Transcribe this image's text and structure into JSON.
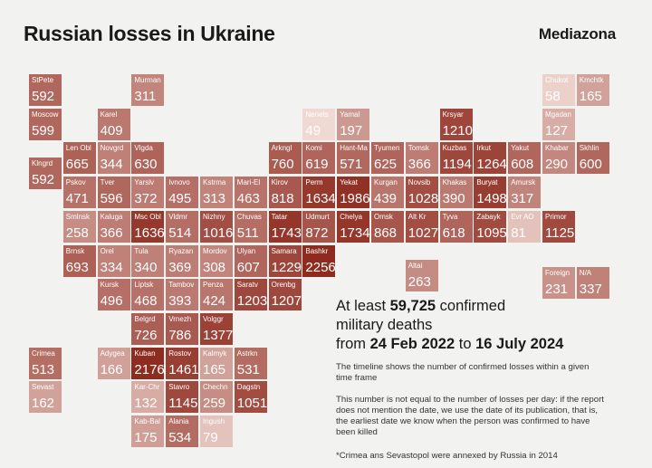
{
  "header": {
    "title": "Russian losses in Ukraine",
    "brand": "Mediazona"
  },
  "headline": {
    "line1_prefix": "At least ",
    "total": "59,725",
    "line1_suffix": " confirmed",
    "line2": "military deaths",
    "line3_prefix": "from ",
    "date_from": "24 Feb 2022",
    "line3_mid": " to ",
    "date_to": "16 July 2024"
  },
  "notes": {
    "timeline": "The timeline shows the number of confirmed losses within a given time frame",
    "caveat": "This number is not equal to the number of losses per day: if the report does not mention the date, we use the date of its publication, that is, the earliest date we know when the person was confirmed to have been killed",
    "footnote": "*Crimea ans Sevastopol were annexed by Russia in 2014"
  },
  "legend_color_scale": {
    "min_color": "#f0d9d3",
    "max_color": "#8e2a1e",
    "min_value": 49,
    "max_value": 2256
  },
  "regions": [
    {
      "name": "StPete",
      "value": 592,
      "col": 0,
      "row": 0
    },
    {
      "name": "Moscow",
      "value": 599,
      "col": 0,
      "row": 1
    },
    {
      "name": "Klngrd",
      "value": 592,
      "col": 0,
      "row": 2.45
    },
    {
      "name": "Murman",
      "value": 311,
      "col": 3,
      "row": 0
    },
    {
      "name": "Karel",
      "value": 409,
      "col": 2,
      "row": 1
    },
    {
      "name": "Len Obl",
      "value": 665,
      "col": 1,
      "row": 2
    },
    {
      "name": "Novgrd",
      "value": 344,
      "col": 2,
      "row": 2
    },
    {
      "name": "Vlgda",
      "value": 630,
      "col": 3,
      "row": 2
    },
    {
      "name": "Pskov",
      "value": 471,
      "col": 1,
      "row": 3
    },
    {
      "name": "Tver",
      "value": 596,
      "col": 2,
      "row": 3
    },
    {
      "name": "Yarslv",
      "value": 372,
      "col": 3,
      "row": 3
    },
    {
      "name": "Ivnovo",
      "value": 495,
      "col": 4,
      "row": 3
    },
    {
      "name": "Kstrma",
      "value": 313,
      "col": 5,
      "row": 3
    },
    {
      "name": "Mari-El",
      "value": 463,
      "col": 6,
      "row": 3
    },
    {
      "name": "Smlnsk",
      "value": 258,
      "col": 1,
      "row": 4
    },
    {
      "name": "Kaluga",
      "value": 366,
      "col": 2,
      "row": 4
    },
    {
      "name": "Msc Obl",
      "value": 1636,
      "col": 3,
      "row": 4
    },
    {
      "name": "Vldmr",
      "value": 514,
      "col": 4,
      "row": 4
    },
    {
      "name": "Nizhny",
      "value": 1016,
      "col": 5,
      "row": 4
    },
    {
      "name": "Chuvas",
      "value": 511,
      "col": 6,
      "row": 4
    },
    {
      "name": "Brnsk",
      "value": 693,
      "col": 1,
      "row": 5
    },
    {
      "name": "Orel",
      "value": 334,
      "col": 2,
      "row": 5
    },
    {
      "name": "Tula",
      "value": 340,
      "col": 3,
      "row": 5
    },
    {
      "name": "Ryazan",
      "value": 369,
      "col": 4,
      "row": 5
    },
    {
      "name": "Mordov",
      "value": 308,
      "col": 5,
      "row": 5
    },
    {
      "name": "Ulyan",
      "value": 607,
      "col": 6,
      "row": 5
    },
    {
      "name": "Kursk",
      "value": 496,
      "col": 2,
      "row": 6
    },
    {
      "name": "Liptsk",
      "value": 468,
      "col": 3,
      "row": 6
    },
    {
      "name": "Tambov",
      "value": 393,
      "col": 4,
      "row": 6
    },
    {
      "name": "Penza",
      "value": 424,
      "col": 5,
      "row": 6
    },
    {
      "name": "Saratv",
      "value": 1203,
      "col": 6,
      "row": 6
    },
    {
      "name": "Orenbg",
      "value": 1207,
      "col": 7,
      "row": 6
    },
    {
      "name": "Belgrd",
      "value": 726,
      "col": 3,
      "row": 7
    },
    {
      "name": "Vrnezh",
      "value": 786,
      "col": 4,
      "row": 7
    },
    {
      "name": "Volggr",
      "value": 1377,
      "col": 5,
      "row": 7
    },
    {
      "name": "Crimea",
      "value": 513,
      "col": 0,
      "row": 8
    },
    {
      "name": "Adygea",
      "value": 166,
      "col": 2,
      "row": 8
    },
    {
      "name": "Kuban",
      "value": 2176,
      "col": 3,
      "row": 8
    },
    {
      "name": "Rostov",
      "value": 1461,
      "col": 4,
      "row": 8
    },
    {
      "name": "Kalmyk",
      "value": 165,
      "col": 5,
      "row": 8
    },
    {
      "name": "Astrkn",
      "value": 531,
      "col": 6,
      "row": 8
    },
    {
      "name": "Sevast",
      "value": 162,
      "col": 0,
      "row": 9
    },
    {
      "name": "Kar-Chr",
      "value": 132,
      "col": 3,
      "row": 9
    },
    {
      "name": "Stavro",
      "value": 1145,
      "col": 4,
      "row": 9
    },
    {
      "name": "Chechn",
      "value": 259,
      "col": 5,
      "row": 9
    },
    {
      "name": "Dagstn",
      "value": 1051,
      "col": 6,
      "row": 9
    },
    {
      "name": "Kab-Bal",
      "value": 175,
      "col": 3,
      "row": 10
    },
    {
      "name": "Alania",
      "value": 534,
      "col": 4,
      "row": 10
    },
    {
      "name": "Ingush",
      "value": 79,
      "col": 5,
      "row": 10
    },
    {
      "name": "Nenets",
      "value": 49,
      "col": 8,
      "row": 1
    },
    {
      "name": "Yamal",
      "value": 197,
      "col": 9,
      "row": 1
    },
    {
      "name": "Arkngl",
      "value": 760,
      "col": 7,
      "row": 2
    },
    {
      "name": "Komi",
      "value": 619,
      "col": 8,
      "row": 2
    },
    {
      "name": "Hant-Ma",
      "value": 571,
      "col": 9,
      "row": 2
    },
    {
      "name": "Tyumen",
      "value": 625,
      "col": 10,
      "row": 2
    },
    {
      "name": "Tomsk",
      "value": 366,
      "col": 11,
      "row": 2
    },
    {
      "name": "Kirov",
      "value": 818,
      "col": 7,
      "row": 3
    },
    {
      "name": "Perm",
      "value": 1634,
      "col": 8,
      "row": 3
    },
    {
      "name": "Yekat",
      "value": 1986,
      "col": 9,
      "row": 3
    },
    {
      "name": "Kurgan",
      "value": 439,
      "col": 10,
      "row": 3
    },
    {
      "name": "Novsib",
      "value": 1028,
      "col": 11,
      "row": 3
    },
    {
      "name": "Tatar",
      "value": 1743,
      "col": 7,
      "row": 4
    },
    {
      "name": "Udmurt",
      "value": 872,
      "col": 8,
      "row": 4
    },
    {
      "name": "Chelya",
      "value": 1734,
      "col": 9,
      "row": 4
    },
    {
      "name": "Omsk",
      "value": 868,
      "col": 10,
      "row": 4
    },
    {
      "name": "Alt Kr",
      "value": 1027,
      "col": 11,
      "row": 4
    },
    {
      "name": "Samara",
      "value": 1229,
      "col": 7,
      "row": 5
    },
    {
      "name": "Bashkr",
      "value": 2256,
      "col": 8,
      "row": 5
    },
    {
      "name": "Altai",
      "value": 263,
      "col": 11,
      "row": 5.45
    },
    {
      "name": "Krsyar",
      "value": 1210,
      "col": 12,
      "row": 1
    },
    {
      "name": "Kuzbas",
      "value": 1194,
      "col": 12,
      "row": 2
    },
    {
      "name": "Irkut",
      "value": 1264,
      "col": 13,
      "row": 2
    },
    {
      "name": "Yakut",
      "value": 608,
      "col": 14,
      "row": 2
    },
    {
      "name": "Khabar",
      "value": 290,
      "col": 15,
      "row": 2
    },
    {
      "name": "Skhlin",
      "value": 600,
      "col": 16,
      "row": 2
    },
    {
      "name": "Khakas",
      "value": 390,
      "col": 12,
      "row": 3
    },
    {
      "name": "Buryat",
      "value": 1498,
      "col": 13,
      "row": 3
    },
    {
      "name": "Amursk",
      "value": 317,
      "col": 14,
      "row": 3
    },
    {
      "name": "Tyva",
      "value": 618,
      "col": 12,
      "row": 4
    },
    {
      "name": "Zabayk",
      "value": 1095,
      "col": 13,
      "row": 4
    },
    {
      "name": "Evr AO",
      "value": 81,
      "col": 14,
      "row": 4
    },
    {
      "name": "Primor",
      "value": 1125,
      "col": 15,
      "row": 4
    },
    {
      "name": "Chukot",
      "value": 58,
      "col": 15,
      "row": 0
    },
    {
      "name": "Kmchtk",
      "value": 165,
      "col": 16,
      "row": 0
    },
    {
      "name": "Mgadan",
      "value": 127,
      "col": 15,
      "row": 1
    },
    {
      "name": "Foreign",
      "value": 231,
      "col": 15,
      "row": 5.65
    },
    {
      "name": "N/A",
      "value": 337,
      "col": 16,
      "row": 5.65
    }
  ]
}
